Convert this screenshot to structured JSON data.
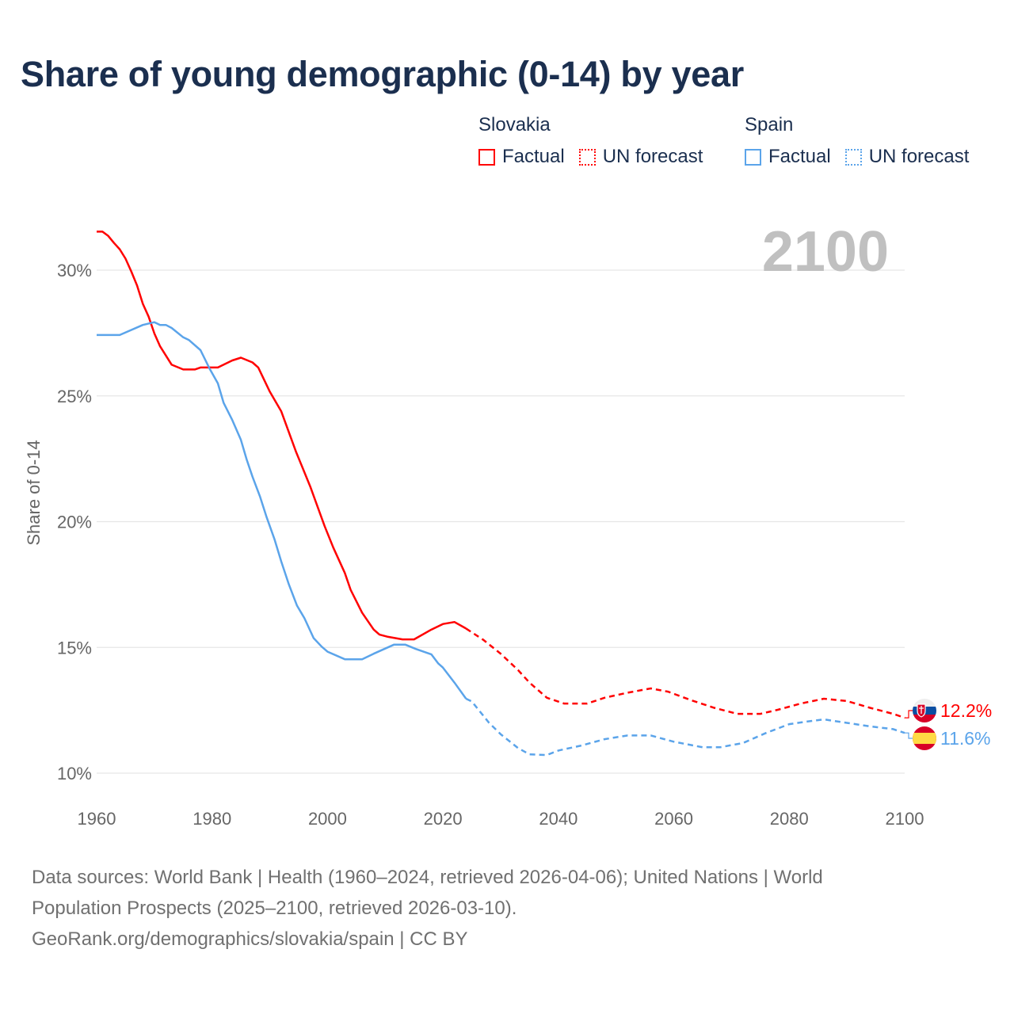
{
  "title": "Share of young demographic (0-14) by year",
  "legend": {
    "groups": [
      {
        "name": "Slovakia",
        "factual": "Factual",
        "forecast": "UN forecast",
        "color": "#ff0000"
      },
      {
        "name": "Spain",
        "factual": "Factual",
        "forecast": "UN forecast",
        "color": "#5ba4ea"
      }
    ]
  },
  "year_watermark": "2100",
  "footer": {
    "line1": "Data sources: World Bank | Health (1960–2024, retrieved 2026-04-06); United Nations | World",
    "line2": "Population Prospects (2025–2100, retrieved 2026-03-10).",
    "line3": "GeoRank.org/demographics/slovakia/spain | CC BY"
  },
  "chart_data": {
    "type": "line",
    "title": "Share of young demographic (0-14) by year",
    "xlabel": "",
    "ylabel": "Share of 0-14",
    "xlim": [
      1960,
      2100
    ],
    "ylim": [
      9.3,
      31.6
    ],
    "xticks": [
      1960,
      1980,
      2000,
      2020,
      2040,
      2060,
      2080,
      2100
    ],
    "xtick_labels": [
      "1960",
      "1980",
      "2000",
      "2020",
      "2040",
      "2060",
      "2080",
      "2100"
    ],
    "yticks": [
      10,
      15,
      20,
      25,
      30
    ],
    "ytick_labels": [
      "10%",
      "15%",
      "20%",
      "25%",
      "30%"
    ],
    "grid": true,
    "legend_position": "top-right",
    "series": [
      {
        "name": "Slovakia",
        "color": "#ff0000",
        "end_label": "12.2%",
        "factual": [
          [
            1960,
            31.53
          ],
          [
            1961,
            31.53
          ],
          [
            1962,
            31.36
          ],
          [
            1963,
            31.08
          ],
          [
            1964,
            30.83
          ],
          [
            1965,
            30.46
          ],
          [
            1966,
            29.95
          ],
          [
            1967,
            29.39
          ],
          [
            1968,
            28.66
          ],
          [
            1969,
            28.15
          ],
          [
            1970,
            27.48
          ],
          [
            1971,
            26.97
          ],
          [
            1973,
            26.24
          ],
          [
            1975,
            26.05
          ],
          [
            1977,
            26.05
          ],
          [
            1978,
            26.13
          ],
          [
            1981,
            26.13
          ],
          [
            1983.5,
            26.41
          ],
          [
            1985,
            26.52
          ],
          [
            1987,
            26.33
          ],
          [
            1988,
            26.13
          ],
          [
            1990,
            25.17
          ],
          [
            1992,
            24.38
          ],
          [
            1994.5,
            22.8
          ],
          [
            1997,
            21.4
          ],
          [
            1999.5,
            19.82
          ],
          [
            2001,
            18.97
          ],
          [
            2003,
            17.96
          ],
          [
            2004,
            17.29
          ],
          [
            2006,
            16.38
          ],
          [
            2008,
            15.71
          ],
          [
            2009,
            15.51
          ],
          [
            2010.5,
            15.42
          ],
          [
            2013,
            15.32
          ],
          [
            2015,
            15.32
          ],
          [
            2018,
            15.71
          ],
          [
            2020,
            15.93
          ],
          [
            2022,
            16.01
          ],
          [
            2024,
            15.75
          ]
        ],
        "forecast": [
          [
            2024,
            15.75
          ],
          [
            2025,
            15.6
          ],
          [
            2027,
            15.3
          ],
          [
            2030,
            14.75
          ],
          [
            2033,
            14.1
          ],
          [
            2035,
            13.6
          ],
          [
            2038,
            13.0
          ],
          [
            2041,
            12.77
          ],
          [
            2045,
            12.77
          ],
          [
            2048,
            13.0
          ],
          [
            2052,
            13.2
          ],
          [
            2056,
            13.37
          ],
          [
            2059,
            13.24
          ],
          [
            2063,
            12.9
          ],
          [
            2067,
            12.6
          ],
          [
            2071,
            12.36
          ],
          [
            2075,
            12.36
          ],
          [
            2078,
            12.52
          ],
          [
            2082,
            12.77
          ],
          [
            2086,
            12.96
          ],
          [
            2090,
            12.87
          ],
          [
            2094,
            12.6
          ],
          [
            2098,
            12.36
          ],
          [
            2100,
            12.2
          ]
        ]
      },
      {
        "name": "Spain",
        "color": "#5ba4ea",
        "end_label": "11.6%",
        "factual": [
          [
            1960,
            27.42
          ],
          [
            1964,
            27.42
          ],
          [
            1968,
            27.82
          ],
          [
            1970,
            27.93
          ],
          [
            1971,
            27.82
          ],
          [
            1972,
            27.82
          ],
          [
            1973,
            27.7
          ],
          [
            1975,
            27.33
          ],
          [
            1976,
            27.22
          ],
          [
            1978,
            26.82
          ],
          [
            1979.6,
            26.07
          ],
          [
            1981,
            25.5
          ],
          [
            1982,
            24.72
          ],
          [
            1983.5,
            24.04
          ],
          [
            1985,
            23.25
          ],
          [
            1986,
            22.47
          ],
          [
            1987,
            21.79
          ],
          [
            1988.3,
            21.0
          ],
          [
            1989.4,
            20.21
          ],
          [
            1990.8,
            19.31
          ],
          [
            1992,
            18.41
          ],
          [
            1993.3,
            17.51
          ],
          [
            1994.7,
            16.67
          ],
          [
            1996,
            16.16
          ],
          [
            1997.6,
            15.37
          ],
          [
            1999,
            15.03
          ],
          [
            2000,
            14.83
          ],
          [
            2003,
            14.53
          ],
          [
            2006,
            14.53
          ],
          [
            2008,
            14.75
          ],
          [
            2011.5,
            15.11
          ],
          [
            2013.5,
            15.11
          ],
          [
            2015.3,
            14.94
          ],
          [
            2018,
            14.72
          ],
          [
            2019.2,
            14.36
          ],
          [
            2020,
            14.2
          ],
          [
            2022,
            13.6
          ],
          [
            2024,
            12.96
          ]
        ],
        "forecast": [
          [
            2024,
            12.96
          ],
          [
            2025,
            12.85
          ],
          [
            2028,
            12.0
          ],
          [
            2030,
            11.55
          ],
          [
            2033,
            11.0
          ],
          [
            2035,
            10.75
          ],
          [
            2038,
            10.72
          ],
          [
            2040,
            10.9
          ],
          [
            2044,
            11.1
          ],
          [
            2048,
            11.35
          ],
          [
            2052,
            11.5
          ],
          [
            2056,
            11.5
          ],
          [
            2060,
            11.25
          ],
          [
            2065,
            11.03
          ],
          [
            2068,
            11.03
          ],
          [
            2072,
            11.2
          ],
          [
            2076,
            11.6
          ],
          [
            2080,
            11.95
          ],
          [
            2083,
            12.05
          ],
          [
            2086,
            12.14
          ],
          [
            2090,
            12.0
          ],
          [
            2094,
            11.86
          ],
          [
            2098,
            11.75
          ],
          [
            2100,
            11.6
          ]
        ]
      }
    ]
  }
}
